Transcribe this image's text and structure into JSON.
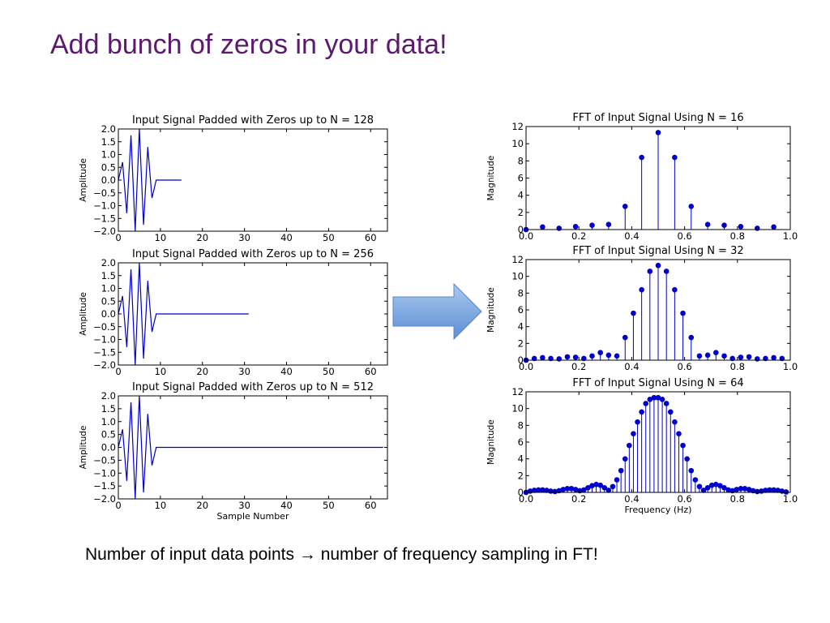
{
  "slide": {
    "title": "Add bunch of zeros in your data!",
    "caption_left": "Number of input data points",
    "caption_arrow": "→",
    "caption_right": "number of frequency sampling in FT!",
    "arrow_color": "#7aa6df"
  },
  "chart_data": [
    {
      "type": "line",
      "title": "Input Signal Padded with Zeros up to N = 128",
      "xlabel": "",
      "ylabel": "Amplitude",
      "xlim": [
        0,
        64
      ],
      "ylim": [
        -2.0,
        2.0
      ],
      "xticks": [
        "0",
        "10",
        "20",
        "30",
        "40",
        "50",
        "60"
      ],
      "yticks": [
        "−2.0",
        "−1.5",
        "−1.0",
        "−0.5",
        "0.0",
        "0.5",
        "1.0",
        "1.5",
        "2.0"
      ],
      "color": "#0000cc",
      "x": [
        0,
        1,
        2,
        3,
        4,
        5,
        6,
        7,
        8,
        9,
        10,
        11,
        12,
        13,
        14,
        15
      ],
      "y": [
        0.0,
        0.7,
        -1.3,
        1.75,
        -2.0,
        2.0,
        -1.75,
        1.3,
        -0.7,
        0.0,
        0.0,
        0.0,
        0.0,
        0.0,
        0.0,
        0.0
      ]
    },
    {
      "type": "line",
      "title": "Input Signal Padded with Zeros up to N = 256",
      "xlabel": "",
      "ylabel": "Amplitude",
      "xlim": [
        0,
        64
      ],
      "ylim": [
        -2.0,
        2.0
      ],
      "xticks": [
        "0",
        "10",
        "20",
        "30",
        "40",
        "50",
        "60"
      ],
      "yticks": [
        "−2.0",
        "−1.5",
        "−1.0",
        "−0.5",
        "0.0",
        "0.5",
        "1.0",
        "1.5",
        "2.0"
      ],
      "color": "#0000cc",
      "x": [
        0,
        1,
        2,
        3,
        4,
        5,
        6,
        7,
        8,
        9,
        31
      ],
      "y": [
        0.0,
        0.7,
        -1.3,
        1.75,
        -2.0,
        2.0,
        -1.75,
        1.3,
        -0.7,
        0.0,
        0.0
      ]
    },
    {
      "type": "line",
      "title": "Input Signal Padded with Zeros up to N = 512",
      "xlabel": "Sample Number",
      "ylabel": "Amplitude",
      "xlim": [
        0,
        64
      ],
      "ylim": [
        -2.0,
        2.0
      ],
      "xticks": [
        "0",
        "10",
        "20",
        "30",
        "40",
        "50",
        "60"
      ],
      "yticks": [
        "−2.0",
        "−1.5",
        "−1.0",
        "−0.5",
        "0.0",
        "0.5",
        "1.0",
        "1.5",
        "2.0"
      ],
      "color": "#0000cc",
      "x": [
        0,
        1,
        2,
        3,
        4,
        5,
        6,
        7,
        8,
        9,
        63
      ],
      "y": [
        0.0,
        0.7,
        -1.3,
        1.75,
        -2.0,
        2.0,
        -1.75,
        1.3,
        -0.7,
        0.0,
        0.0
      ]
    },
    {
      "type": "stem",
      "title": "FFT of Input Signal Using N = 16",
      "xlabel": "",
      "ylabel": "Magnitude",
      "xlim": [
        0.0,
        1.0
      ],
      "ylim": [
        0,
        12
      ],
      "xticks": [
        "0.0",
        "0.2",
        "0.4",
        "0.6",
        "0.8",
        "1.0"
      ],
      "yticks": [
        "0",
        "2",
        "4",
        "6",
        "8",
        "10",
        "12"
      ],
      "color": "#0000cc",
      "points": 16,
      "y": [
        0.0,
        0.3,
        0.15,
        0.35,
        0.5,
        0.6,
        2.7,
        8.4,
        11.3,
        8.4,
        2.7,
        0.6,
        0.5,
        0.35,
        0.15,
        0.3
      ]
    },
    {
      "type": "stem",
      "title": "FFT of Input Signal Using N = 32",
      "xlabel": "",
      "ylabel": "Magnitude",
      "xlim": [
        0.0,
        1.0
      ],
      "ylim": [
        0,
        12
      ],
      "xticks": [
        "0.0",
        "0.2",
        "0.4",
        "0.6",
        "0.8",
        "1.0"
      ],
      "yticks": [
        "0",
        "2",
        "4",
        "6",
        "8",
        "10",
        "12"
      ],
      "color": "#0000cc",
      "points": 32,
      "y": [
        0.0,
        0.2,
        0.3,
        0.2,
        0.15,
        0.4,
        0.35,
        0.2,
        0.5,
        0.9,
        0.6,
        0.5,
        2.7,
        5.6,
        8.4,
        10.6,
        11.3,
        10.6,
        8.4,
        5.6,
        2.7,
        0.5,
        0.6,
        0.9,
        0.5,
        0.2,
        0.35,
        0.4,
        0.15,
        0.2,
        0.3,
        0.2
      ]
    },
    {
      "type": "stem",
      "title": "FFT of Input Signal Using N = 64",
      "xlabel": "Frequency (Hz)",
      "ylabel": "Magnitude",
      "xlim": [
        0.0,
        1.0
      ],
      "ylim": [
        0,
        12
      ],
      "xticks": [
        "0.0",
        "0.2",
        "0.4",
        "0.6",
        "0.8",
        "1.0"
      ],
      "yticks": [
        "0",
        "2",
        "4",
        "6",
        "8",
        "10",
        "12"
      ],
      "color": "#0000cc",
      "points": 64,
      "y": [
        0.0,
        0.15,
        0.25,
        0.3,
        0.3,
        0.25,
        0.15,
        0.1,
        0.2,
        0.35,
        0.45,
        0.45,
        0.35,
        0.2,
        0.3,
        0.55,
        0.8,
        0.95,
        0.85,
        0.55,
        0.25,
        0.7,
        1.5,
        2.6,
        4.0,
        5.6,
        7.0,
        8.4,
        9.6,
        10.6,
        11.1,
        11.3,
        11.3,
        11.1,
        10.6,
        9.6,
        8.4,
        7.0,
        5.6,
        4.0,
        2.6,
        1.5,
        0.7,
        0.25,
        0.55,
        0.85,
        0.95,
        0.8,
        0.55,
        0.3,
        0.2,
        0.35,
        0.45,
        0.45,
        0.35,
        0.2,
        0.1,
        0.15,
        0.25,
        0.3,
        0.3,
        0.25,
        0.15,
        0.05
      ]
    }
  ]
}
